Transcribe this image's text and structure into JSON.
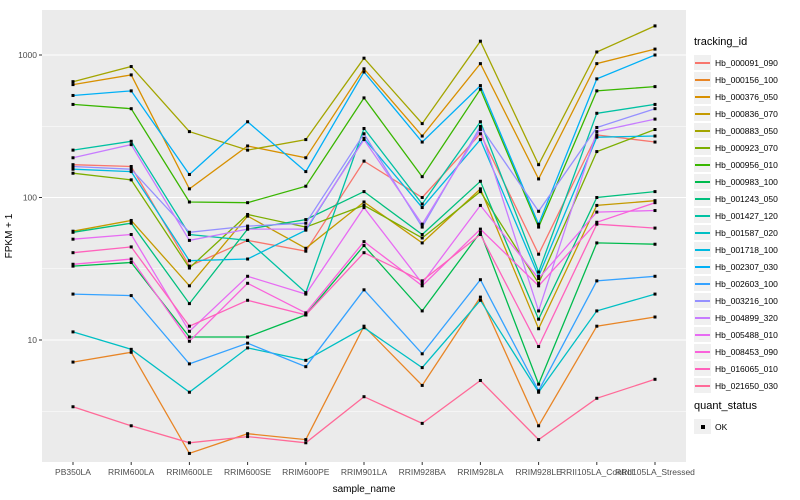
{
  "chart_data": {
    "type": "line",
    "title": "",
    "xlabel": "sample_name",
    "ylabel": "FPKM + 1",
    "y_scale": "log10",
    "y_ticks": [
      10,
      100,
      1000
    ],
    "y_minor_gridlines": [
      3.162,
      31.62,
      316.2
    ],
    "ylim_log": [
      0.14,
      3.32
    ],
    "grid": true,
    "panel_bg": "#ebebeb",
    "gridline_color": "#ffffff",
    "tick_label_color": "#4d4d4d",
    "point_color": "#000000",
    "legend_position": "right",
    "categories": [
      "PB350LA",
      "RRIM600LA",
      "RRIM600LE",
      "RRIM600SE",
      "RRIM600PE",
      "RRIM901LA",
      "RRIM928BA",
      "RRIM928LA",
      "RRIM928LE",
      "RRII105LA_Control",
      "RRII105LA_Stressed"
    ],
    "series": [
      {
        "name": "Hb_000091_090",
        "color": "#F8766D",
        "values": [
          170,
          165,
          33,
          50,
          42,
          180,
          100,
          280,
          40,
          275,
          245
        ]
      },
      {
        "name": "Hb_000156_100",
        "color": "#E88526",
        "values": [
          7,
          8.2,
          1.6,
          2.2,
          2.0,
          12.5,
          4.8,
          20,
          2.5,
          12.5,
          14.5
        ]
      },
      {
        "name": "Hb_000376_050",
        "color": "#D89000",
        "values": [
          620,
          725,
          115,
          230,
          190,
          800,
          270,
          870,
          135,
          870,
          1100
        ]
      },
      {
        "name": "Hb_000836_070",
        "color": "#C49A00",
        "values": [
          58,
          69,
          24,
          74,
          44,
          93,
          48,
          115,
          12,
          88,
          95
        ]
      },
      {
        "name": "Hb_000883_050",
        "color": "#A3A500",
        "values": [
          650,
          830,
          290,
          215,
          255,
          950,
          330,
          1250,
          170,
          1050,
          1600
        ]
      },
      {
        "name": "Hb_000923_070",
        "color": "#7CAE00",
        "values": [
          148,
          133,
          32,
          76,
          62,
          88,
          52,
          110,
          25,
          210,
          300
        ]
      },
      {
        "name": "Hb_000956_010",
        "color": "#39B600",
        "values": [
          450,
          420,
          93,
          92,
          120,
          500,
          140,
          575,
          62,
          560,
          600
        ]
      },
      {
        "name": "Hb_000983_100",
        "color": "#00BB4E",
        "values": [
          33,
          35,
          10.5,
          10.5,
          15,
          46,
          16,
          57,
          4.9,
          48,
          47
        ]
      },
      {
        "name": "Hb_001243_050",
        "color": "#00BF7D",
        "values": [
          57,
          66,
          18,
          60,
          70,
          110,
          55,
          130,
          14,
          100,
          110
        ]
      },
      {
        "name": "Hb_001427_120",
        "color": "#00C1A3",
        "values": [
          215,
          248,
          55,
          50,
          21.5,
          305,
          90,
          340,
          30,
          390,
          450
        ]
      },
      {
        "name": "Hb_001587_020",
        "color": "#00BFC4",
        "values": [
          11.4,
          8.6,
          4.3,
          8.8,
          7.2,
          12.2,
          6.4,
          19,
          4.3,
          16,
          21
        ]
      },
      {
        "name": "Hb_001718_100",
        "color": "#00BAE0",
        "values": [
          158,
          152,
          36,
          37,
          59,
          260,
          85,
          255,
          28,
          265,
          270
        ]
      },
      {
        "name": "Hb_002307_030",
        "color": "#00B0F6",
        "values": [
          520,
          560,
          145,
          340,
          152,
          760,
          245,
          610,
          65,
          680,
          1000
        ]
      },
      {
        "name": "Hb_002603_100",
        "color": "#35A2FF",
        "values": [
          21,
          20.5,
          6.8,
          9.5,
          6.5,
          22.5,
          8,
          26.5,
          4.4,
          26,
          28
        ]
      },
      {
        "name": "Hb_003216_100",
        "color": "#9590FF",
        "values": [
          165,
          158,
          57,
          63,
          66,
          280,
          62,
          315,
          80,
          310,
          420
        ]
      },
      {
        "name": "Hb_004899_320",
        "color": "#C77CFF",
        "values": [
          190,
          235,
          50,
          60,
          60,
          255,
          65,
          300,
          16,
          290,
          355
        ]
      },
      {
        "name": "Hb_005488_010",
        "color": "#E76BF3",
        "values": [
          51,
          55,
          11.5,
          28,
          21,
          85,
          25,
          88,
          27,
          79,
          81
        ]
      },
      {
        "name": "Hb_008453_090",
        "color": "#FA62DB",
        "values": [
          34,
          37,
          9.8,
          25,
          15.5,
          49,
          24,
          60,
          24,
          67,
          92
        ]
      },
      {
        "name": "Hb_016065_010",
        "color": "#FF62BC",
        "values": [
          41,
          45,
          12.5,
          19,
          15,
          41,
          26,
          55,
          9,
          65,
          61
        ]
      },
      {
        "name": "Hb_021650_030",
        "color": "#FF6A98",
        "values": [
          3.4,
          2.5,
          1.9,
          2.1,
          1.9,
          4.0,
          2.6,
          5.2,
          2.0,
          3.9,
          5.3
        ]
      }
    ]
  },
  "legend": {
    "title": "tracking_id"
  },
  "legend2": {
    "title": "quant_status",
    "items": [
      {
        "label": "OK"
      }
    ]
  },
  "axes": {
    "x_label": "sample_name",
    "y_label": "FPKM + 1",
    "y_tick_labels": [
      "10",
      "100",
      "1000"
    ]
  }
}
